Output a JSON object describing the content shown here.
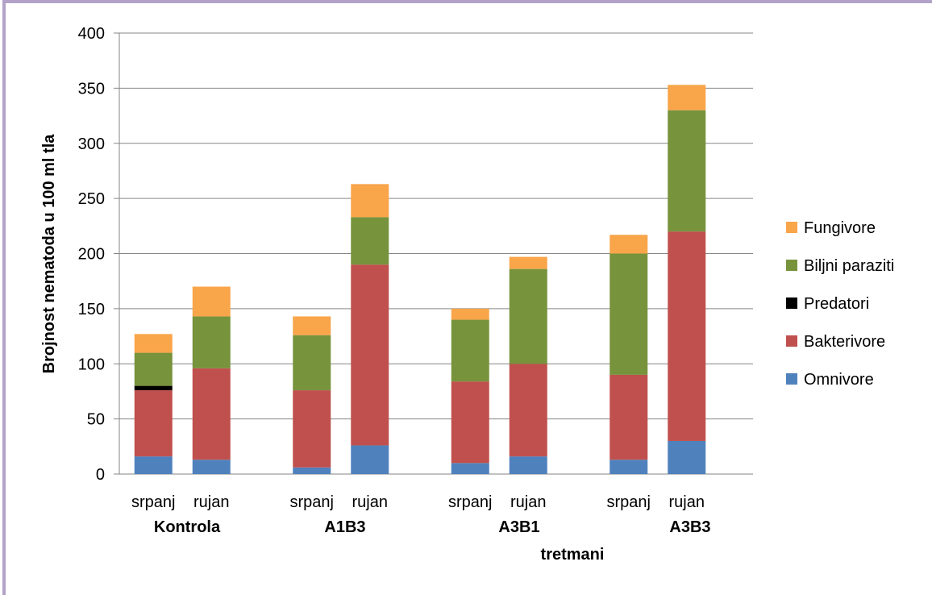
{
  "chart_data": {
    "type": "bar",
    "stacked": true,
    "title": "",
    "xlabel": "tretmani",
    "ylabel": "Brojnost nematoda u 100 ml tla",
    "ylim": [
      0,
      400
    ],
    "yticks": [
      0,
      50,
      100,
      150,
      200,
      250,
      300,
      350,
      400
    ],
    "grid": true,
    "legend_position": "right",
    "groups": [
      "Kontrola",
      "A1B3",
      "A3B1",
      "A3B3"
    ],
    "categories": [
      "srpanj",
      "rujan",
      "srpanj",
      "rujan",
      "srpanj",
      "rujan",
      "srpanj",
      "rujan"
    ],
    "category_group": [
      0,
      0,
      1,
      1,
      2,
      2,
      3,
      3
    ],
    "series": [
      {
        "name": "Omnivore",
        "color": "#4f81bd",
        "values": [
          16,
          13,
          6,
          26,
          10,
          16,
          13,
          30
        ]
      },
      {
        "name": "Bakterivore",
        "color": "#c0504d",
        "values": [
          60,
          83,
          70,
          164,
          74,
          84,
          77,
          190
        ]
      },
      {
        "name": "Predatori",
        "color": "#000000",
        "values": [
          4,
          0,
          0,
          0,
          0,
          0,
          0,
          0
        ]
      },
      {
        "name": "Biljni paraziti",
        "color": "#77933c",
        "values": [
          30,
          47,
          50,
          43,
          56,
          86,
          110,
          110
        ]
      },
      {
        "name": "Fungivore",
        "color": "#f9a54a",
        "values": [
          17,
          27,
          17,
          30,
          10,
          11,
          17,
          23
        ]
      }
    ],
    "legend_order": [
      "Fungivore",
      "Biljni paraziti",
      "Predatori",
      "Bakterivore",
      "Omnivore"
    ]
  },
  "colors": {
    "frame_border": "#b3a2c7",
    "gridline": "#868686",
    "axis": "#868686"
  }
}
